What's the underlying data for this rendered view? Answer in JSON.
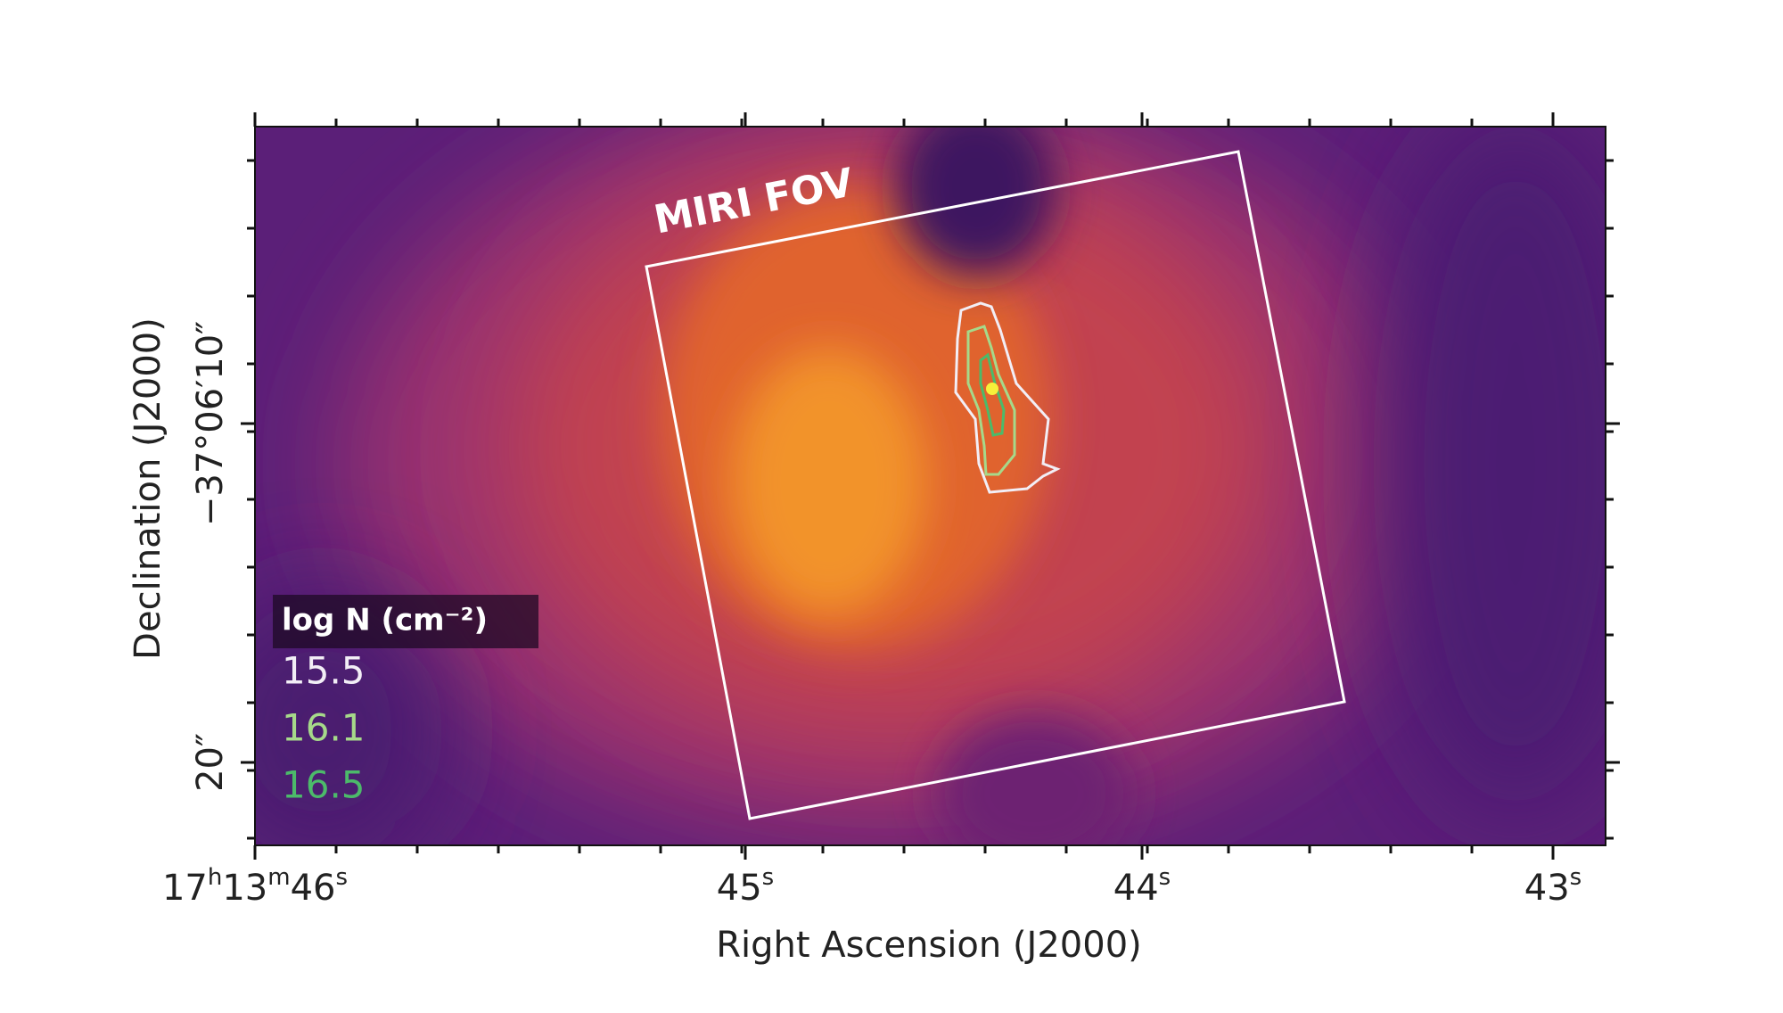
{
  "figure": {
    "annotation": "MIRI FOV",
    "x_axis": {
      "label": "Right Ascension (J2000)",
      "ticks": [
        [
          {
            "text": "17"
          },
          {
            "sup": "h"
          },
          {
            "text": "13"
          },
          {
            "sup": "m"
          },
          {
            "text": "46"
          },
          {
            "sup": "s"
          }
        ],
        [
          {
            "text": "45"
          },
          {
            "sup": "s"
          }
        ],
        [
          {
            "text": "44"
          },
          {
            "sup": "s"
          }
        ],
        [
          {
            "text": "43"
          },
          {
            "sup": "s"
          }
        ]
      ]
    },
    "y_axis": {
      "label": "Declination (J2000)",
      "ticks": [
        "−37°06′10″",
        "20″"
      ]
    },
    "legend": {
      "title": "log N (cm⁻²)",
      "levels": [
        {
          "value": 15.5,
          "color": "#f2eef6"
        },
        {
          "value": 16.1,
          "color": "#a6d98a"
        },
        {
          "value": 16.5,
          "color": "#4cba6a"
        }
      ]
    }
  }
}
